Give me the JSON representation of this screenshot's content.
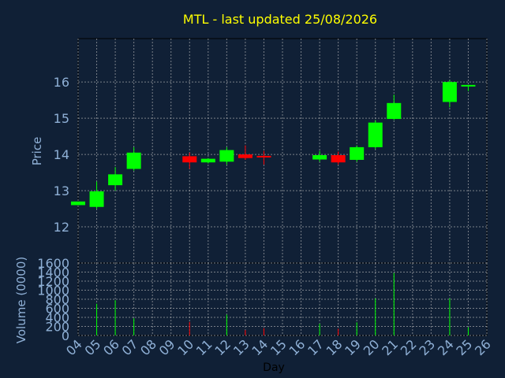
{
  "chart_data": [
    {
      "type": "candlestick",
      "title": "MTL - last updated 25/08/2026",
      "ylabel": "Price",
      "ylim": [
        11,
        17.2
      ],
      "yticks": [
        12,
        13,
        14,
        15,
        16
      ],
      "grid": true,
      "colors": {
        "up": "#00ff00",
        "down": "#ff0000",
        "background": "#102036",
        "grid": "#c0c0c0",
        "text": "#8fb0d6",
        "title": "#ffff00"
      },
      "candles": [
        {
          "day": "04",
          "open": 12.6,
          "high": 12.7,
          "low": 12.6,
          "close": 12.7
        },
        {
          "day": "05",
          "open": 12.55,
          "high": 13.25,
          "low": 12.5,
          "close": 12.98
        },
        {
          "day": "06",
          "open": 13.15,
          "high": 13.65,
          "low": 13.0,
          "close": 13.45
        },
        {
          "day": "07",
          "open": 13.6,
          "high": 14.2,
          "low": 13.55,
          "close": 14.05
        },
        {
          "day": "10",
          "open": 13.95,
          "high": 14.05,
          "low": 13.6,
          "close": 13.78
        },
        {
          "day": "11",
          "open": 13.78,
          "high": 13.9,
          "low": 13.75,
          "close": 13.88
        },
        {
          "day": "12",
          "open": 13.8,
          "high": 14.2,
          "low": 13.72,
          "close": 14.12
        },
        {
          "day": "13",
          "open": 14.0,
          "high": 14.25,
          "low": 13.85,
          "close": 13.9
        },
        {
          "day": "14",
          "open": 13.96,
          "high": 14.1,
          "low": 13.72,
          "close": 13.92
        },
        {
          "day": "17",
          "open": 13.86,
          "high": 14.1,
          "low": 13.8,
          "close": 13.98
        },
        {
          "day": "18",
          "open": 13.98,
          "high": 14.08,
          "low": 13.72,
          "close": 13.78
        },
        {
          "day": "19",
          "open": 13.85,
          "high": 14.25,
          "low": 13.8,
          "close": 14.2
        },
        {
          "day": "20",
          "open": 14.2,
          "high": 14.95,
          "low": 14.15,
          "close": 14.88
        },
        {
          "day": "21",
          "open": 14.98,
          "high": 15.65,
          "low": 14.95,
          "close": 15.42
        },
        {
          "day": "24",
          "open": 15.45,
          "high": 16.05,
          "low": 15.3,
          "close": 16.0
        },
        {
          "day": "25",
          "open": 15.88,
          "high": 15.92,
          "low": 15.75,
          "close": 15.92
        }
      ]
    },
    {
      "type": "bar",
      "ylabel": "Volume (0000)",
      "xlabel": "Day",
      "ylim": [
        0,
        1600
      ],
      "yticks": [
        0,
        200,
        400,
        600,
        800,
        1000,
        1200,
        1400,
        1600
      ],
      "categories": [
        "04",
        "05",
        "06",
        "07",
        "08",
        "09",
        "10",
        "11",
        "12",
        "13",
        "14",
        "15",
        "16",
        "17",
        "18",
        "19",
        "20",
        "21",
        "22",
        "23",
        "24",
        "25",
        "26"
      ],
      "bars": [
        {
          "day": "05",
          "value": 700,
          "direction": "up"
        },
        {
          "day": "06",
          "value": 780,
          "direction": "up"
        },
        {
          "day": "07",
          "value": 380,
          "direction": "up"
        },
        {
          "day": "10",
          "value": 300,
          "direction": "down"
        },
        {
          "day": "12",
          "value": 460,
          "direction": "up"
        },
        {
          "day": "13",
          "value": 120,
          "direction": "down"
        },
        {
          "day": "14",
          "value": 160,
          "direction": "down"
        },
        {
          "day": "17",
          "value": 260,
          "direction": "up"
        },
        {
          "day": "18",
          "value": 150,
          "direction": "down"
        },
        {
          "day": "19",
          "value": 290,
          "direction": "up"
        },
        {
          "day": "20",
          "value": 820,
          "direction": "up"
        },
        {
          "day": "21",
          "value": 1380,
          "direction": "up"
        },
        {
          "day": "24",
          "value": 820,
          "direction": "up"
        },
        {
          "day": "25",
          "value": 180,
          "direction": "up"
        }
      ]
    }
  ]
}
